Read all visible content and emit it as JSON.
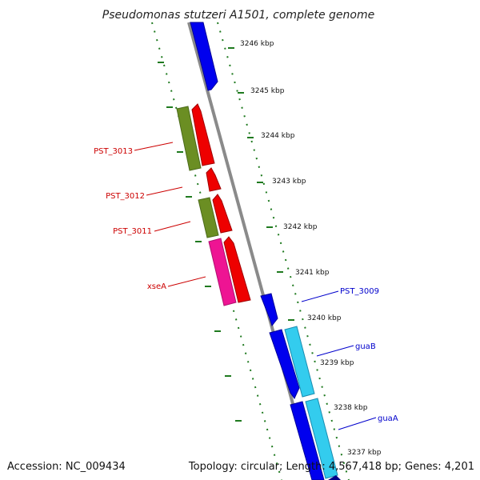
{
  "title": "Pseudomonas stutzeri A1501, complete genome",
  "footer": {
    "accession": "Accession: NC_009434",
    "info": "Topology: circular; Length: 4,567,418 bp; Genes: 4,201"
  },
  "scale_labels": [
    "3246 kbp",
    "3245 kbp",
    "3244 kbp",
    "3243 kbp",
    "3242 kbp",
    "3241 kbp",
    "3240 kbp",
    "3239 kbp",
    "3238 kbp",
    "3237 kbp"
  ],
  "gene_labels": {
    "reverse": [
      "PST_3013",
      "PST_3012",
      "PST_3011",
      "xseA"
    ],
    "forward": [
      "PST_3009",
      "guaB",
      "guaA"
    ]
  },
  "colors": {
    "backbone": "#8a8a8a",
    "scale_ticks": "#1f7a1f",
    "forward_cds": "#0000ee",
    "forward_feature": "#33ccee",
    "reverse_cds": "#ee0000",
    "reverse_feature": "#6b8e23",
    "reverse_other": "#ee1493",
    "reverse_label": "#cc0000",
    "forward_label": "#0000cc"
  }
}
